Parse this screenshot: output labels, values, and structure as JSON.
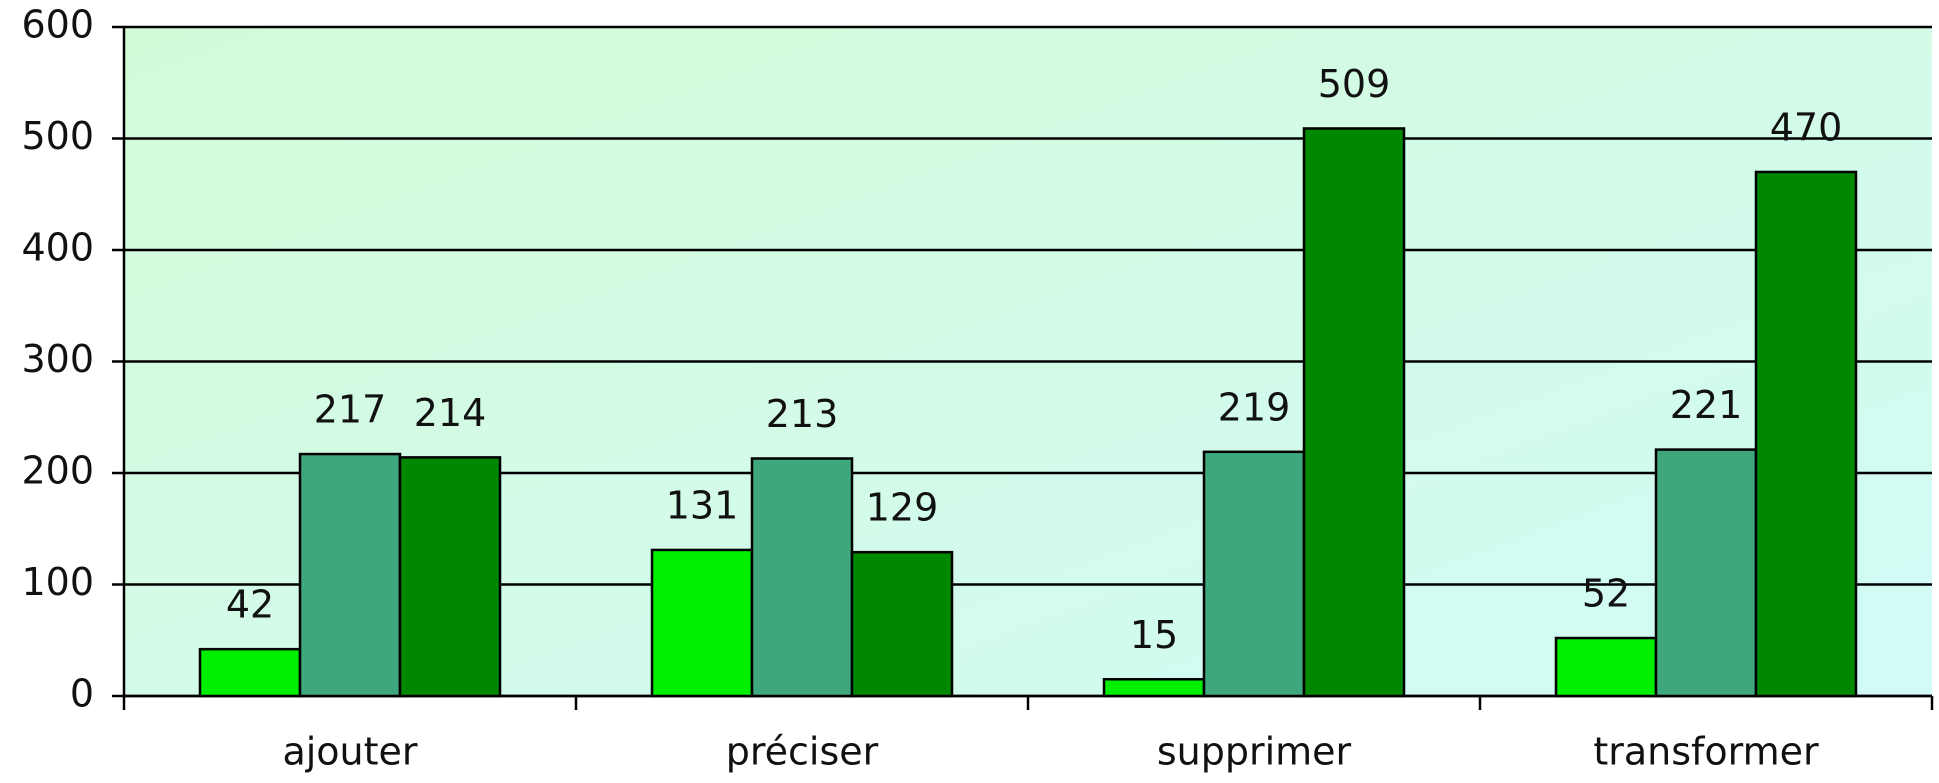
{
  "chart_data": {
    "type": "bar",
    "categories": [
      "ajouter",
      "préciser",
      "supprimer",
      "transformer"
    ],
    "series": [
      {
        "color": "#00ee00",
        "values": [
          42,
          131,
          15,
          52
        ]
      },
      {
        "color": "#3fa77c",
        "values": [
          217,
          213,
          219,
          221
        ]
      },
      {
        "color": "#008800",
        "values": [
          214,
          129,
          509,
          470
        ]
      }
    ],
    "ylim": [
      0,
      600
    ],
    "yticks": [
      0,
      100,
      200,
      300,
      400,
      500,
      600
    ],
    "grid": true
  }
}
